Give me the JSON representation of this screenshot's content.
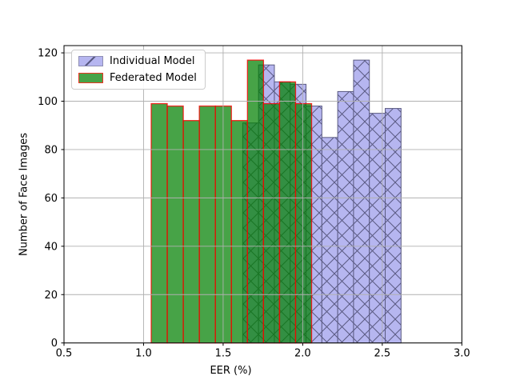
{
  "chart_data": {
    "type": "bar",
    "subtype": "overlaid-histograms",
    "title": "",
    "xlabel": "EER (%)",
    "ylabel": "Number of Face Images",
    "xlim": [
      0.5,
      3.0
    ],
    "ylim": [
      0,
      123
    ],
    "grid": true,
    "grid_on_top_of_bars": true,
    "legend_position": "upper-left",
    "xticks": {
      "values": [
        0.5,
        1.0,
        1.5,
        2.0,
        2.5,
        3.0
      ],
      "labels": [
        "0.5",
        "1.0",
        "1.5",
        "2.0",
        "2.5",
        "3.0"
      ]
    },
    "yticks": {
      "values": [
        0,
        20,
        40,
        60,
        80,
        100,
        120
      ],
      "labels": [
        "0",
        "20",
        "40",
        "60",
        "80",
        "100",
        "120"
      ]
    },
    "series": [
      {
        "name": "Individual Model",
        "bin_start": 1.623,
        "bin_width": 0.0995,
        "values": [
          91,
          115,
          108,
          107,
          98,
          85,
          104,
          117,
          95,
          97
        ],
        "fill": "#b6b6f0",
        "edge": "#5a5a82",
        "hatch": "X"
      },
      {
        "name": "Federated Model",
        "bin_start": 1.048,
        "bin_width": 0.1008,
        "values": [
          99,
          98,
          92,
          98,
          98,
          92,
          117,
          99,
          108,
          99
        ],
        "fill": "rgba(0,128,0,0.72)",
        "edge": "rgba(255,0,0,0.8)",
        "hatch": null
      }
    ]
  },
  "colors": {
    "background": "#ffffff",
    "grid": "#b0b0b0",
    "frame": "#000000",
    "text": "#000000",
    "individual_fill": "#b6b6f0",
    "individual_edge": "#5a5a82",
    "federated_fill_over_white": "#47a347",
    "federated_edge": "#ee3424"
  }
}
